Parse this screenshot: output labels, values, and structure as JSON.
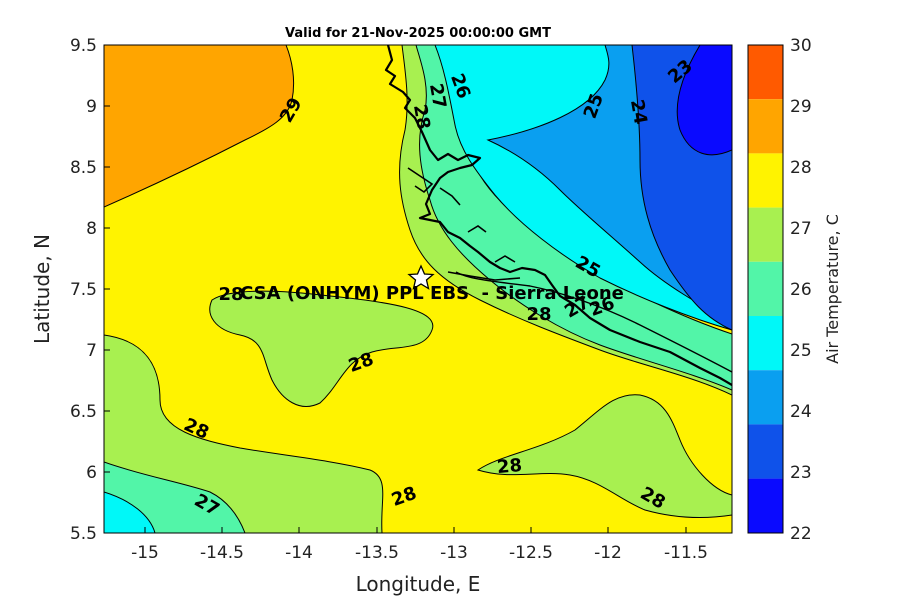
{
  "title": "Valid for 21-Nov-2025 00:00:00 GMT",
  "axes": {
    "xlabel": "Longitude, E",
    "ylabel": "Latitude, N",
    "xticks": [
      "-15",
      "-14.5",
      "-14",
      "-13.5",
      "-13",
      "-12.5",
      "-12",
      "-11.5"
    ],
    "yticks": [
      "9.5",
      "9",
      "8.5",
      "8",
      "7.5",
      "7",
      "6.5",
      "6",
      "5.5"
    ]
  },
  "site": {
    "label": "CSA (ONHYM) PPL EBS  - Sierra Leone",
    "marker": "star"
  },
  "colorbar": {
    "label": "Air Temperature, C",
    "ticks": [
      "30",
      "29",
      "28",
      "27",
      "26",
      "25",
      "24",
      "23",
      "22"
    ],
    "colors": {
      "22-23": "#0a0aff",
      "23-24": "#0f52ea",
      "24-25": "#0a9ff0",
      "25-26": "#00f8f8",
      "26-27": "#52f5a8",
      "27-28": "#a8f050",
      "28-29": "#fff300",
      "29-30": "#ffa500",
      "30+": "#ff5a00"
    }
  },
  "contour_labels": [
    "29",
    "27",
    "26",
    "28",
    "25",
    "24",
    "23",
    "28",
    "25",
    "28",
    "27",
    "26",
    "28",
    "28",
    "28",
    "28",
    "27",
    "28"
  ]
}
